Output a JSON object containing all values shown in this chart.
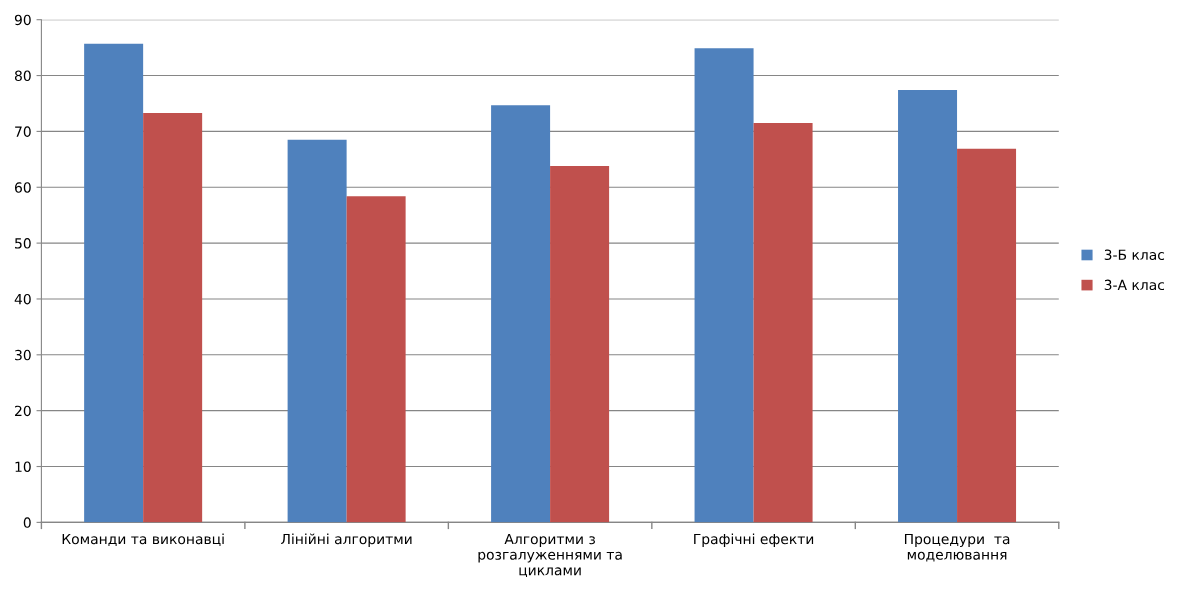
{
  "chart_data": {
    "type": "bar",
    "categories": [
      "Команди та виконавці",
      "Лінійні алгоритми",
      "Алгоритми з\nрозгалуженнями та\nциклами",
      "Графічні ефекти",
      "Процедури  та\nмоделювання"
    ],
    "series": [
      {
        "name": "3-Б клас",
        "color": "#4f81bd",
        "values": [
          85.7,
          68.5,
          74.7,
          84.9,
          77.4
        ]
      },
      {
        "name": "3-А клас",
        "color": "#c0504d",
        "values": [
          73.3,
          58.4,
          63.8,
          71.5,
          66.9
        ]
      }
    ],
    "ylim": [
      0,
      90
    ],
    "yticks": [
      0,
      10,
      20,
      30,
      40,
      50,
      60,
      70,
      80,
      90
    ],
    "grid": "y",
    "legend": "right"
  }
}
